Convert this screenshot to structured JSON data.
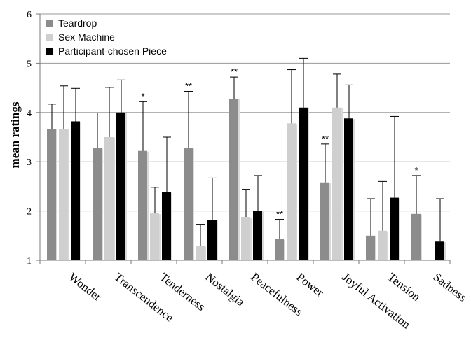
{
  "chart_data": {
    "type": "bar",
    "title": "",
    "xlabel": "",
    "ylabel": "mean ratings",
    "ylim": [
      1,
      6
    ],
    "yticks": [
      "1",
      "2",
      "3",
      "4",
      "5",
      "6"
    ],
    "grid": true,
    "legend_position": "top-left",
    "categories": [
      "Wonder",
      "Transcendence",
      "Tenderness",
      "Nostalgia",
      "Peacefulness",
      "Power",
      "Joyful Activation",
      "Tension",
      "Sadness"
    ],
    "series": [
      {
        "name": "Teardrop",
        "color": "#8c8c8c",
        "values": [
          3.67,
          3.28,
          3.22,
          3.28,
          4.28,
          1.43,
          2.58,
          1.5,
          1.94
        ],
        "error": [
          0.5,
          0.71,
          1.0,
          1.15,
          0.44,
          0.4,
          0.78,
          0.75,
          0.78
        ],
        "significance": [
          "",
          "",
          "*",
          "**",
          "**",
          "**",
          "**",
          "",
          "*"
        ]
      },
      {
        "name": "Sex Machine",
        "color": "#cfcfcf",
        "values": [
          3.67,
          3.5,
          1.95,
          1.29,
          1.88,
          3.78,
          4.1,
          1.6,
          1.0
        ],
        "error": [
          0.87,
          1.01,
          0.53,
          0.44,
          0.56,
          1.09,
          0.68,
          1.0,
          0.0
        ],
        "significance": [
          "",
          "",
          "",
          "",
          "",
          "",
          "",
          "",
          ""
        ]
      },
      {
        "name": "Participant-chosen Piece",
        "color": "#000000",
        "values": [
          3.82,
          4.0,
          2.38,
          1.82,
          2.0,
          4.1,
          3.88,
          2.27,
          1.38
        ],
        "error": [
          0.67,
          0.66,
          1.12,
          0.85,
          0.72,
          1.0,
          0.68,
          1.65,
          0.87
        ],
        "significance": [
          "",
          "",
          "",
          "",
          "",
          "",
          "",
          "",
          ""
        ]
      }
    ]
  }
}
